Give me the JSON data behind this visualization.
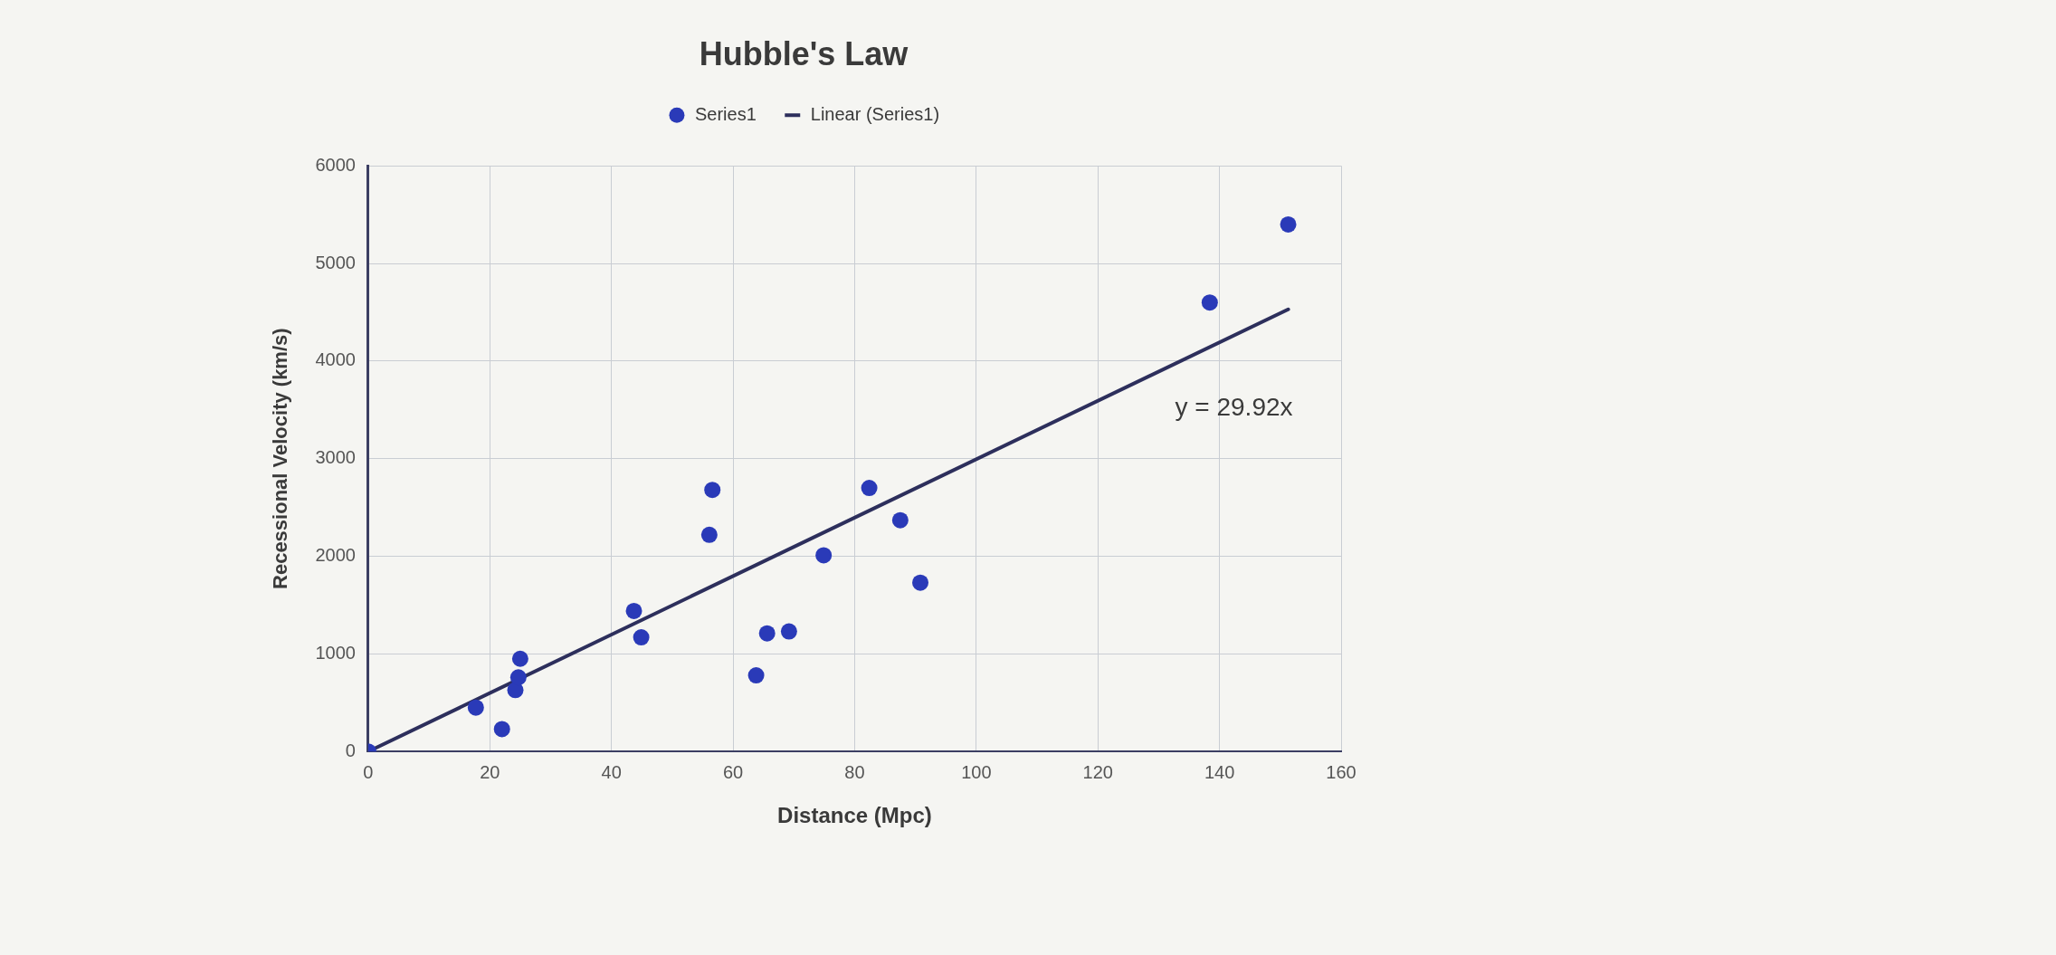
{
  "chart_data": {
    "type": "scatter",
    "title": "Hubble's Law",
    "xlabel": "Distance (Mpc)",
    "ylabel": "Recessional Velocity (km/s)",
    "xlim": [
      0,
      160
    ],
    "xticks": [
      0,
      20,
      40,
      60,
      80,
      100,
      120,
      140,
      160
    ],
    "ylim": [
      0,
      6000
    ],
    "yticks": [
      0,
      1000,
      2000,
      3000,
      4000,
      5000,
      6000
    ],
    "grid": true,
    "legend": "top",
    "marker": "circle",
    "series": [
      {
        "name": "Series1",
        "type": "scatter",
        "color": "#2a3ab8",
        "x": [
          0,
          17.7,
          22.0,
          24.2,
          24.7,
          25.0,
          43.7,
          44.9,
          56.1,
          56.6,
          63.8,
          65.6,
          69.2,
          74.9,
          82.4,
          87.5,
          90.8,
          138.4,
          151.3
        ],
        "values": [
          0,
          450,
          230,
          630,
          760,
          950,
          1440,
          1170,
          2220,
          2680,
          780,
          1210,
          1230,
          2010,
          2700,
          2370,
          1730,
          4600,
          5400
        ]
      },
      {
        "name": "Linear (Series1)",
        "type": "line",
        "color": "#2d2f5c",
        "marker": "none",
        "line_style": "solid",
        "x": [
          0,
          151.3
        ],
        "values": [
          0,
          4530
        ]
      }
    ],
    "annotations": [
      "y = 29.92x"
    ]
  }
}
